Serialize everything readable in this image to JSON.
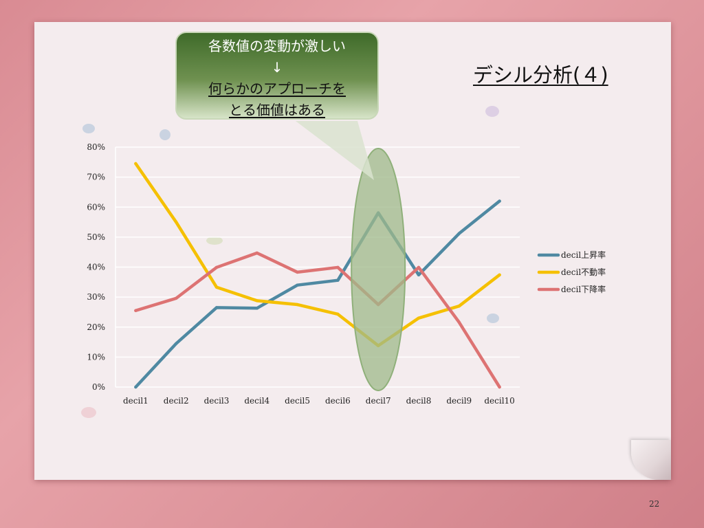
{
  "slide": {
    "title": "デシル分析(４)",
    "page_number": "22"
  },
  "callout": {
    "line1": "各数値の変動が激しい",
    "line2": "↓",
    "line3": "何らかのアプローチを",
    "line4": "とる価値はある"
  },
  "colors": {
    "up": "#4f89a2",
    "flat": "#f5c000",
    "down": "#dd7373",
    "highlight": "#9fb98a"
  },
  "chart_data": {
    "type": "line",
    "categories": [
      "decil1",
      "decil2",
      "decil3",
      "decil4",
      "decil5",
      "decil6",
      "decil7",
      "decil8",
      "decil9",
      "decil10"
    ],
    "y_ticks": [
      "0%",
      "10%",
      "20%",
      "30%",
      "40%",
      "50%",
      "60%",
      "70%",
      "80%"
    ],
    "ylim": [
      0,
      80
    ],
    "grid": true,
    "legend_position": "right",
    "highlighted_category": "decil7",
    "series": [
      {
        "name": "decil上昇率",
        "values": [
          0,
          14.5,
          26.5,
          26.3,
          34,
          35.6,
          58.1,
          37.4,
          51.2,
          62
        ]
      },
      {
        "name": "decil不動率",
        "values": [
          74.5,
          55,
          33.3,
          28.8,
          27.5,
          24.3,
          13.8,
          23,
          27,
          37.4
        ]
      },
      {
        "name": "decil下降率",
        "values": [
          25.5,
          29.6,
          39.9,
          44.7,
          38.3,
          39.9,
          27.5,
          39.9,
          21.6,
          0
        ]
      }
    ]
  }
}
